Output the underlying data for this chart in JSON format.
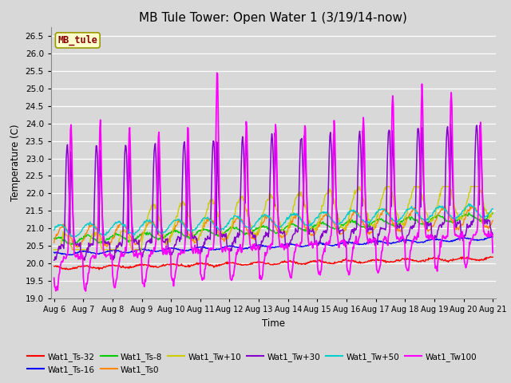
{
  "title": "MB Tule Tower: Open Water 1 (3/19/14-now)",
  "xlabel": "Time",
  "ylabel": "Temperature (C)",
  "ylim": [
    19.0,
    26.75
  ],
  "yticks": [
    19.0,
    19.5,
    20.0,
    20.5,
    21.0,
    21.5,
    22.0,
    22.5,
    23.0,
    23.5,
    24.0,
    24.5,
    25.0,
    25.5,
    26.0,
    26.5
  ],
  "xtick_labels": [
    "Aug 6",
    "Aug 7",
    "Aug 8",
    "Aug 9",
    "Aug 10",
    "Aug 11",
    "Aug 12",
    "Aug 13",
    "Aug 14",
    "Aug 15",
    "Aug 16",
    "Aug 17",
    "Aug 18",
    "Aug 19",
    "Aug 20",
    "Aug 21"
  ],
  "series_order": [
    "Wat1_Ts-32",
    "Wat1_Ts-16",
    "Wat1_Ts-8",
    "Wat1_Ts0",
    "Wat1_Tw+10",
    "Wat1_Tw+30",
    "Wat1_Tw+50",
    "Wat1_Tw100"
  ],
  "series_colors": {
    "Wat1_Ts-32": "#ff0000",
    "Wat1_Ts-16": "#0000ff",
    "Wat1_Ts-8": "#00cc00",
    "Wat1_Ts0": "#ff8800",
    "Wat1_Tw+10": "#cccc00",
    "Wat1_Tw+30": "#8800cc",
    "Wat1_Tw+50": "#00cccc",
    "Wat1_Tw100": "#ff00ff"
  },
  "legend_box": {
    "text": "MB_tule",
    "facecolor": "#ffffcc",
    "edgecolor": "#999900",
    "textcolor": "#880000"
  },
  "fig_bg": "#d8d8d8",
  "plot_bg": "#d8d8d8",
  "grid_color": "#ffffff",
  "title_fontsize": 11
}
